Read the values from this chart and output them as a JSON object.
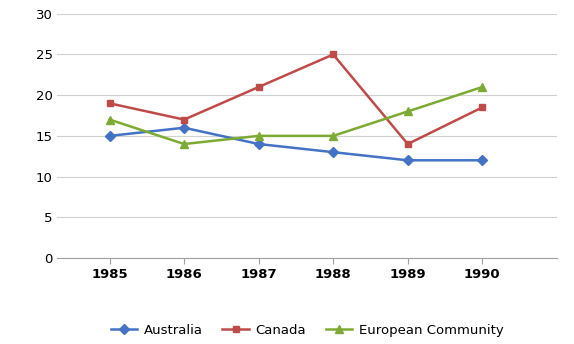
{
  "years": [
    1985,
    1986,
    1987,
    1988,
    1989,
    1990
  ],
  "australia": [
    15,
    16,
    14,
    13,
    12,
    12
  ],
  "canada": [
    19,
    17,
    21,
    25,
    14,
    18.5
  ],
  "european_community": [
    17,
    14,
    15,
    15,
    18,
    21
  ],
  "australia_color": "#4472C4",
  "canada_color": "#BE4B48",
  "ec_color": "#7DAA33",
  "ylim": [
    0,
    30
  ],
  "yticks": [
    0,
    5,
    10,
    15,
    20,
    25,
    30
  ],
  "legend_labels": [
    "Australia",
    "Canada",
    "European Community"
  ],
  "background_color": "#FFFFFF",
  "grid_color": "#D0D0D0",
  "marker_size": 5,
  "linewidth": 1.8,
  "tick_fontsize": 9.5
}
